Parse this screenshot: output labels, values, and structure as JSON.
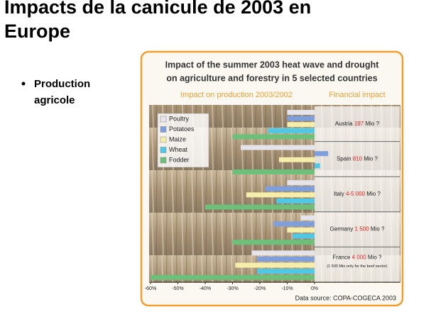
{
  "slide": {
    "title": [
      "Impacts de la canicule de 2003 en",
      "Europe"
    ],
    "bullet": [
      "Production",
      "agricole"
    ]
  },
  "chart_data": {
    "type": "bar",
    "orientation": "horizontal",
    "title": [
      "Impact of the summer 2003 heat wave and drought",
      "on agriculture and forestry in 5 selected countries"
    ],
    "subtitle_left": "Impact on production 2003/2002",
    "subtitle_right": "Financial impact",
    "categories": [
      "Austria",
      "Spain",
      "Italy",
      "Germany",
      "France"
    ],
    "series": [
      {
        "name": "Poultry",
        "color": "#e4e4ea",
        "values": [
          -10,
          -27,
          -10,
          -5,
          -23
        ]
      },
      {
        "name": "Potatoes",
        "color": "#7f9fdc",
        "values": [
          -10,
          5,
          -18,
          -15,
          -21
        ]
      },
      {
        "name": "Maize",
        "color": "#f4eeaa",
        "values": [
          -10,
          -13,
          -25,
          -10,
          -29
        ]
      },
      {
        "name": "Wheat",
        "color": "#4fc8e6",
        "values": [
          -17,
          2,
          -14,
          -8,
          -21
        ]
      },
      {
        "name": "Fodder",
        "color": "#6cc07a",
        "values": [
          -30,
          -30,
          -40,
          -30,
          -60
        ]
      }
    ],
    "financial_impact": [
      {
        "amount": "197",
        "unit": "Mio ?"
      },
      {
        "amount": "810",
        "unit": "Mio ?"
      },
      {
        "amount": "4-5 000",
        "unit": "Mio ?"
      },
      {
        "amount": "1 500",
        "unit": "Mio ?"
      },
      {
        "amount": "4 000",
        "unit": "Mio ?"
      }
    ],
    "financial_note": "(1 500 Mio only for the beef sector)",
    "source": "Data source: COPA-COGECA 2003",
    "xlim": [
      -60,
      0
    ],
    "xticks": [
      {
        "value": -60,
        "label": "-60%"
      },
      {
        "value": -50,
        "label": "-50%"
      },
      {
        "value": -40,
        "label": "-40%"
      },
      {
        "value": -30,
        "label": "-30%"
      },
      {
        "value": -20,
        "label": "-20%"
      },
      {
        "value": -10,
        "label": "-10%"
      },
      {
        "value": 0,
        "label": "0%"
      }
    ],
    "legend": "upper left"
  }
}
